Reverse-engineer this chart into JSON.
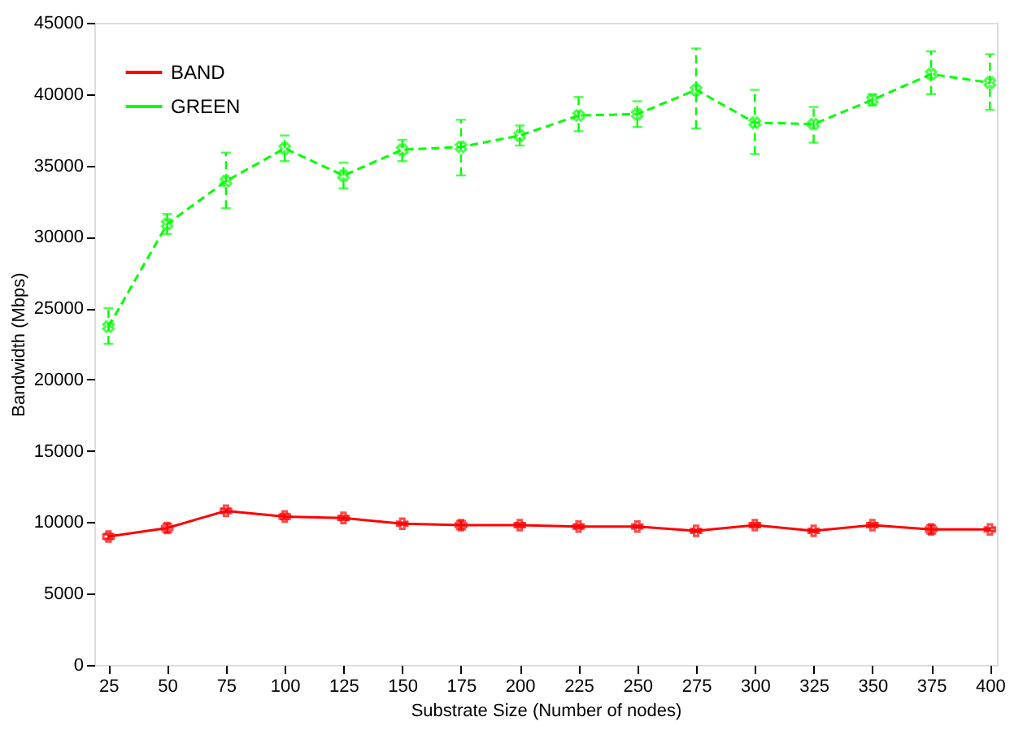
{
  "chart_data": {
    "type": "line",
    "xlabel": "Substrate Size (Number of nodes)",
    "ylabel": "Bandwidth (Mbps)",
    "x": [
      25,
      50,
      75,
      100,
      125,
      150,
      175,
      200,
      225,
      250,
      275,
      300,
      325,
      350,
      375,
      400
    ],
    "xlim": [
      19,
      403
    ],
    "xticks": [
      25,
      50,
      75,
      100,
      125,
      150,
      175,
      200,
      225,
      250,
      275,
      300,
      325,
      350,
      375,
      400
    ],
    "ylim": [
      0,
      45000
    ],
    "yticks": [
      0,
      {
        "value": 5000,
        "label": "5000"
      },
      {
        "value": 10000,
        "label": "10000"
      },
      {
        "value": 15000,
        "label": "15000"
      },
      {
        "value": 20000,
        "label": "20000"
      },
      {
        "value": 25000,
        "label": "25000"
      },
      {
        "value": 30000,
        "label": "30000"
      },
      {
        "value": 35000,
        "label": "35000"
      },
      {
        "value": 40000,
        "label": "40000"
      },
      {
        "value": 45000,
        "label": "45000"
      }
    ],
    "grid": false,
    "legend": "top left",
    "series": [
      {
        "name": "BAND",
        "color": "#ff0000",
        "marker": "cross",
        "line_style": "solid",
        "values": [
          9000,
          9600,
          10800,
          10400,
          10300,
          9900,
          9800,
          9800,
          9700,
          9700,
          9400,
          9800,
          9400,
          9800,
          9500,
          9500
        ],
        "errors": [
          200,
          300,
          150,
          200,
          150,
          100,
          300,
          150,
          150,
          100,
          100,
          150,
          100,
          150,
          300,
          100
        ]
      },
      {
        "name": "GREEN",
        "color": "#00ff00",
        "marker": "cross",
        "line_style": "dashed",
        "values": [
          23700,
          30900,
          33900,
          36200,
          34300,
          36100,
          36300,
          37100,
          38500,
          38600,
          40300,
          38000,
          37900,
          39600,
          41400,
          40800
        ],
        "errors": [
          [
            22500,
            25000
          ],
          [
            30200,
            31600
          ],
          [
            32000,
            35900
          ],
          [
            35300,
            37100
          ],
          [
            33400,
            35200
          ],
          [
            35300,
            36800
          ],
          [
            34300,
            38200
          ],
          [
            36400,
            37800
          ],
          [
            37400,
            39800
          ],
          [
            37700,
            39500
          ],
          [
            37600,
            43200
          ],
          [
            35800,
            40300
          ],
          [
            36600,
            39100
          ],
          [
            39200,
            40000
          ],
          [
            40000,
            43000
          ],
          [
            38900,
            42800
          ]
        ]
      }
    ]
  }
}
